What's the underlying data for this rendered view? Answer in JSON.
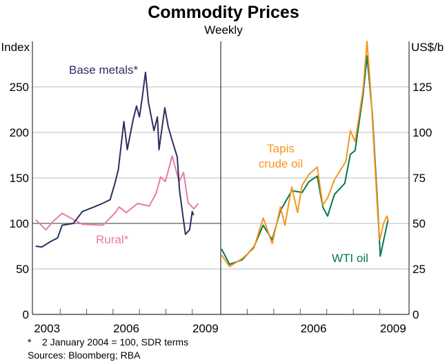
{
  "chart_data": {
    "type": "line",
    "title": "Commodity Prices",
    "subtitle": "Weekly",
    "footnote": "*    2 January 2004 = 100, SDR terms",
    "sources": "Sources: Bloomberg; RBA",
    "panels": [
      {
        "name": "left",
        "ylabel": "Index",
        "ylim": [
          0,
          300
        ],
        "yticks": [
          0,
          50,
          100,
          150,
          200,
          250
        ],
        "xlim": [
          2003,
          2010
        ],
        "xtick_labels": [
          {
            "year": 2003,
            "label": "2003"
          },
          {
            "year": 2006,
            "label": "2006"
          },
          {
            "year": 2009,
            "label": "2009"
          }
        ],
        "reference_line": 100,
        "series": [
          {
            "name": "Base metals*",
            "color": "#2e2d62",
            "x": [
              2003.07,
              2003.3,
              2003.63,
              2003.9,
              2004.07,
              2004.5,
              2004.84,
              2005.28,
              2005.6,
              2005.89,
              2006.06,
              2006.2,
              2006.41,
              2006.54,
              2006.76,
              2006.89,
              2007.0,
              2007.1,
              2007.23,
              2007.34,
              2007.55,
              2007.68,
              2007.74,
              2007.96,
              2008.09,
              2008.26,
              2008.43,
              2008.52,
              2008.61,
              2008.74,
              2008.9,
              2009.0,
              2009.05
            ],
            "values": [
              75,
              74,
              80,
              84,
              98,
              100,
              113,
              118,
              122,
              126,
              143,
              159,
              212,
              181,
              214,
              229,
              217,
              237,
              266,
              233,
              202,
              217,
              181,
              227,
              206,
              189,
              173,
              136,
              116,
              88,
              93,
              113,
              109
            ]
          },
          {
            "name": "Rural*",
            "color": "#e87aa9",
            "x": [
              2003.07,
              2003.46,
              2003.72,
              2004.07,
              2004.33,
              2004.84,
              2005.62,
              2006.06,
              2006.23,
              2006.5,
              2006.93,
              2007.37,
              2007.63,
              2007.8,
              2007.98,
              2008.24,
              2008.5,
              2008.67,
              2008.84,
              2009.06,
              2009.23
            ],
            "values": [
              104,
              93,
              102,
              111,
              107,
              99,
              98,
              111,
              118,
              112,
              122,
              119,
              133,
              151,
              146,
              174,
              146,
              156,
              123,
              116,
              122
            ]
          }
        ]
      },
      {
        "name": "right",
        "ylabel": "US$/b",
        "ylim": [
          0,
          150
        ],
        "yticks": [
          0,
          25,
          50,
          75,
          100,
          125
        ],
        "xlim": [
          2003,
          2010
        ],
        "xtick_labels": [
          {
            "year": 2006,
            "label": "2006"
          },
          {
            "year": 2009,
            "label": "2009"
          }
        ],
        "series": [
          {
            "name": "Tapis crude oil",
            "label_lines": [
              "Tapis",
              "crude oil"
            ],
            "color": "#f7941d",
            "x": [
              2003.03,
              2003.33,
              2003.81,
              2004.25,
              2004.6,
              2004.94,
              2005.25,
              2005.42,
              2005.68,
              2005.9,
              2006.07,
              2006.33,
              2006.64,
              2006.85,
              2007.03,
              2007.29,
              2007.46,
              2007.72,
              2007.89,
              2008.07,
              2008.24,
              2008.37,
              2008.52,
              2008.67,
              2008.76,
              2008.93,
              2009.0,
              2009.14,
              2009.27,
              2009.33
            ],
            "values": [
              32.6,
              26.3,
              30.7,
              36.4,
              53,
              38.9,
              59,
              49,
              70,
              56,
              71,
              77,
              81,
              60,
              64,
              74,
              78,
              84,
              101,
              95,
              111,
              124,
              150,
              120,
              97,
              53,
              41,
              50,
              54,
              51
            ]
          },
          {
            "name": "WTI oil",
            "color": "#007a4a",
            "x": [
              2003.03,
              2003.33,
              2003.81,
              2004.25,
              2004.6,
              2004.94,
              2005.25,
              2005.68,
              2006.07,
              2006.33,
              2006.64,
              2006.85,
              2007.03,
              2007.29,
              2007.68,
              2007.89,
              2008.07,
              2008.37,
              2008.52,
              2008.72,
              2008.9,
              2009.02,
              2009.15,
              2009.31
            ],
            "values": [
              36,
              27.5,
              30,
              37,
              49,
              41,
              57,
              68,
              67,
              73,
              76,
              59,
              54,
              66,
              72,
              88,
              90,
              121,
              142,
              110,
              65,
              32,
              41,
              52
            ]
          }
        ]
      }
    ]
  }
}
